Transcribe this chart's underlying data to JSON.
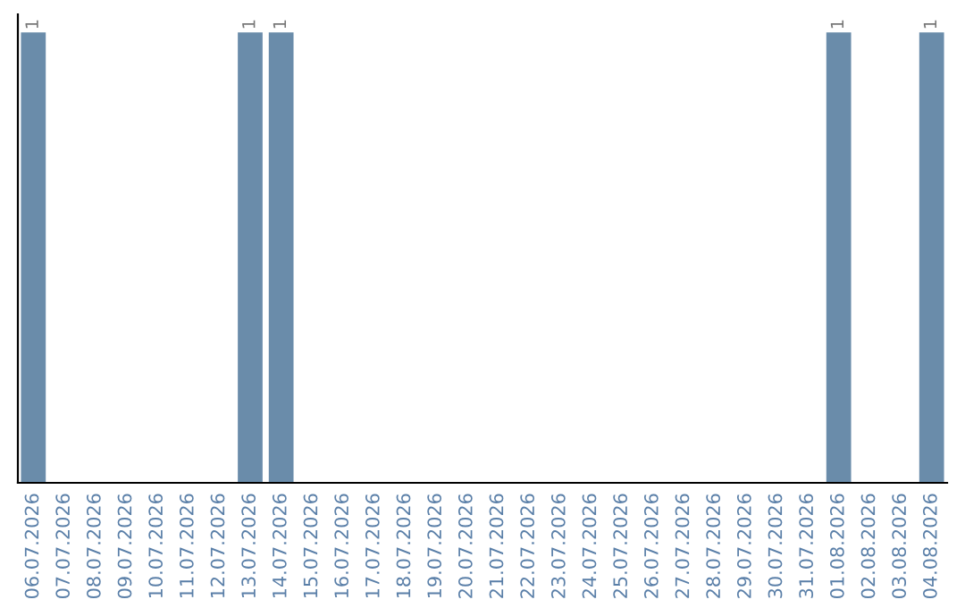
{
  "chart_data": {
    "type": "bar",
    "categories": [
      "06.07.2026",
      "07.07.2026",
      "08.07.2026",
      "09.07.2026",
      "10.07.2026",
      "11.07.2026",
      "12.07.2026",
      "13.07.2026",
      "14.07.2026",
      "15.07.2026",
      "16.07.2026",
      "17.07.2026",
      "18.07.2026",
      "19.07.2026",
      "20.07.2026",
      "21.07.2026",
      "22.07.2026",
      "23.07.2026",
      "24.07.2026",
      "25.07.2026",
      "26.07.2026",
      "27.07.2026",
      "28.07.2026",
      "29.07.2026",
      "30.07.2026",
      "31.07.2026",
      "01.08.2026",
      "02.08.2026",
      "03.08.2026",
      "04.08.2026"
    ],
    "values": [
      1,
      0,
      0,
      0,
      0,
      0,
      0,
      1,
      1,
      0,
      0,
      0,
      0,
      0,
      0,
      0,
      0,
      0,
      0,
      0,
      0,
      0,
      0,
      0,
      0,
      0,
      1,
      0,
      0,
      1
    ],
    "value_labels": [
      "1",
      null,
      null,
      null,
      null,
      null,
      null,
      "1",
      "1",
      null,
      null,
      null,
      null,
      null,
      null,
      null,
      null,
      null,
      null,
      null,
      null,
      null,
      null,
      null,
      null,
      null,
      "1",
      null,
      null,
      "1"
    ],
    "color": "#6a8caa",
    "tick_labels": "x",
    "grid": false,
    "legend": false
  }
}
